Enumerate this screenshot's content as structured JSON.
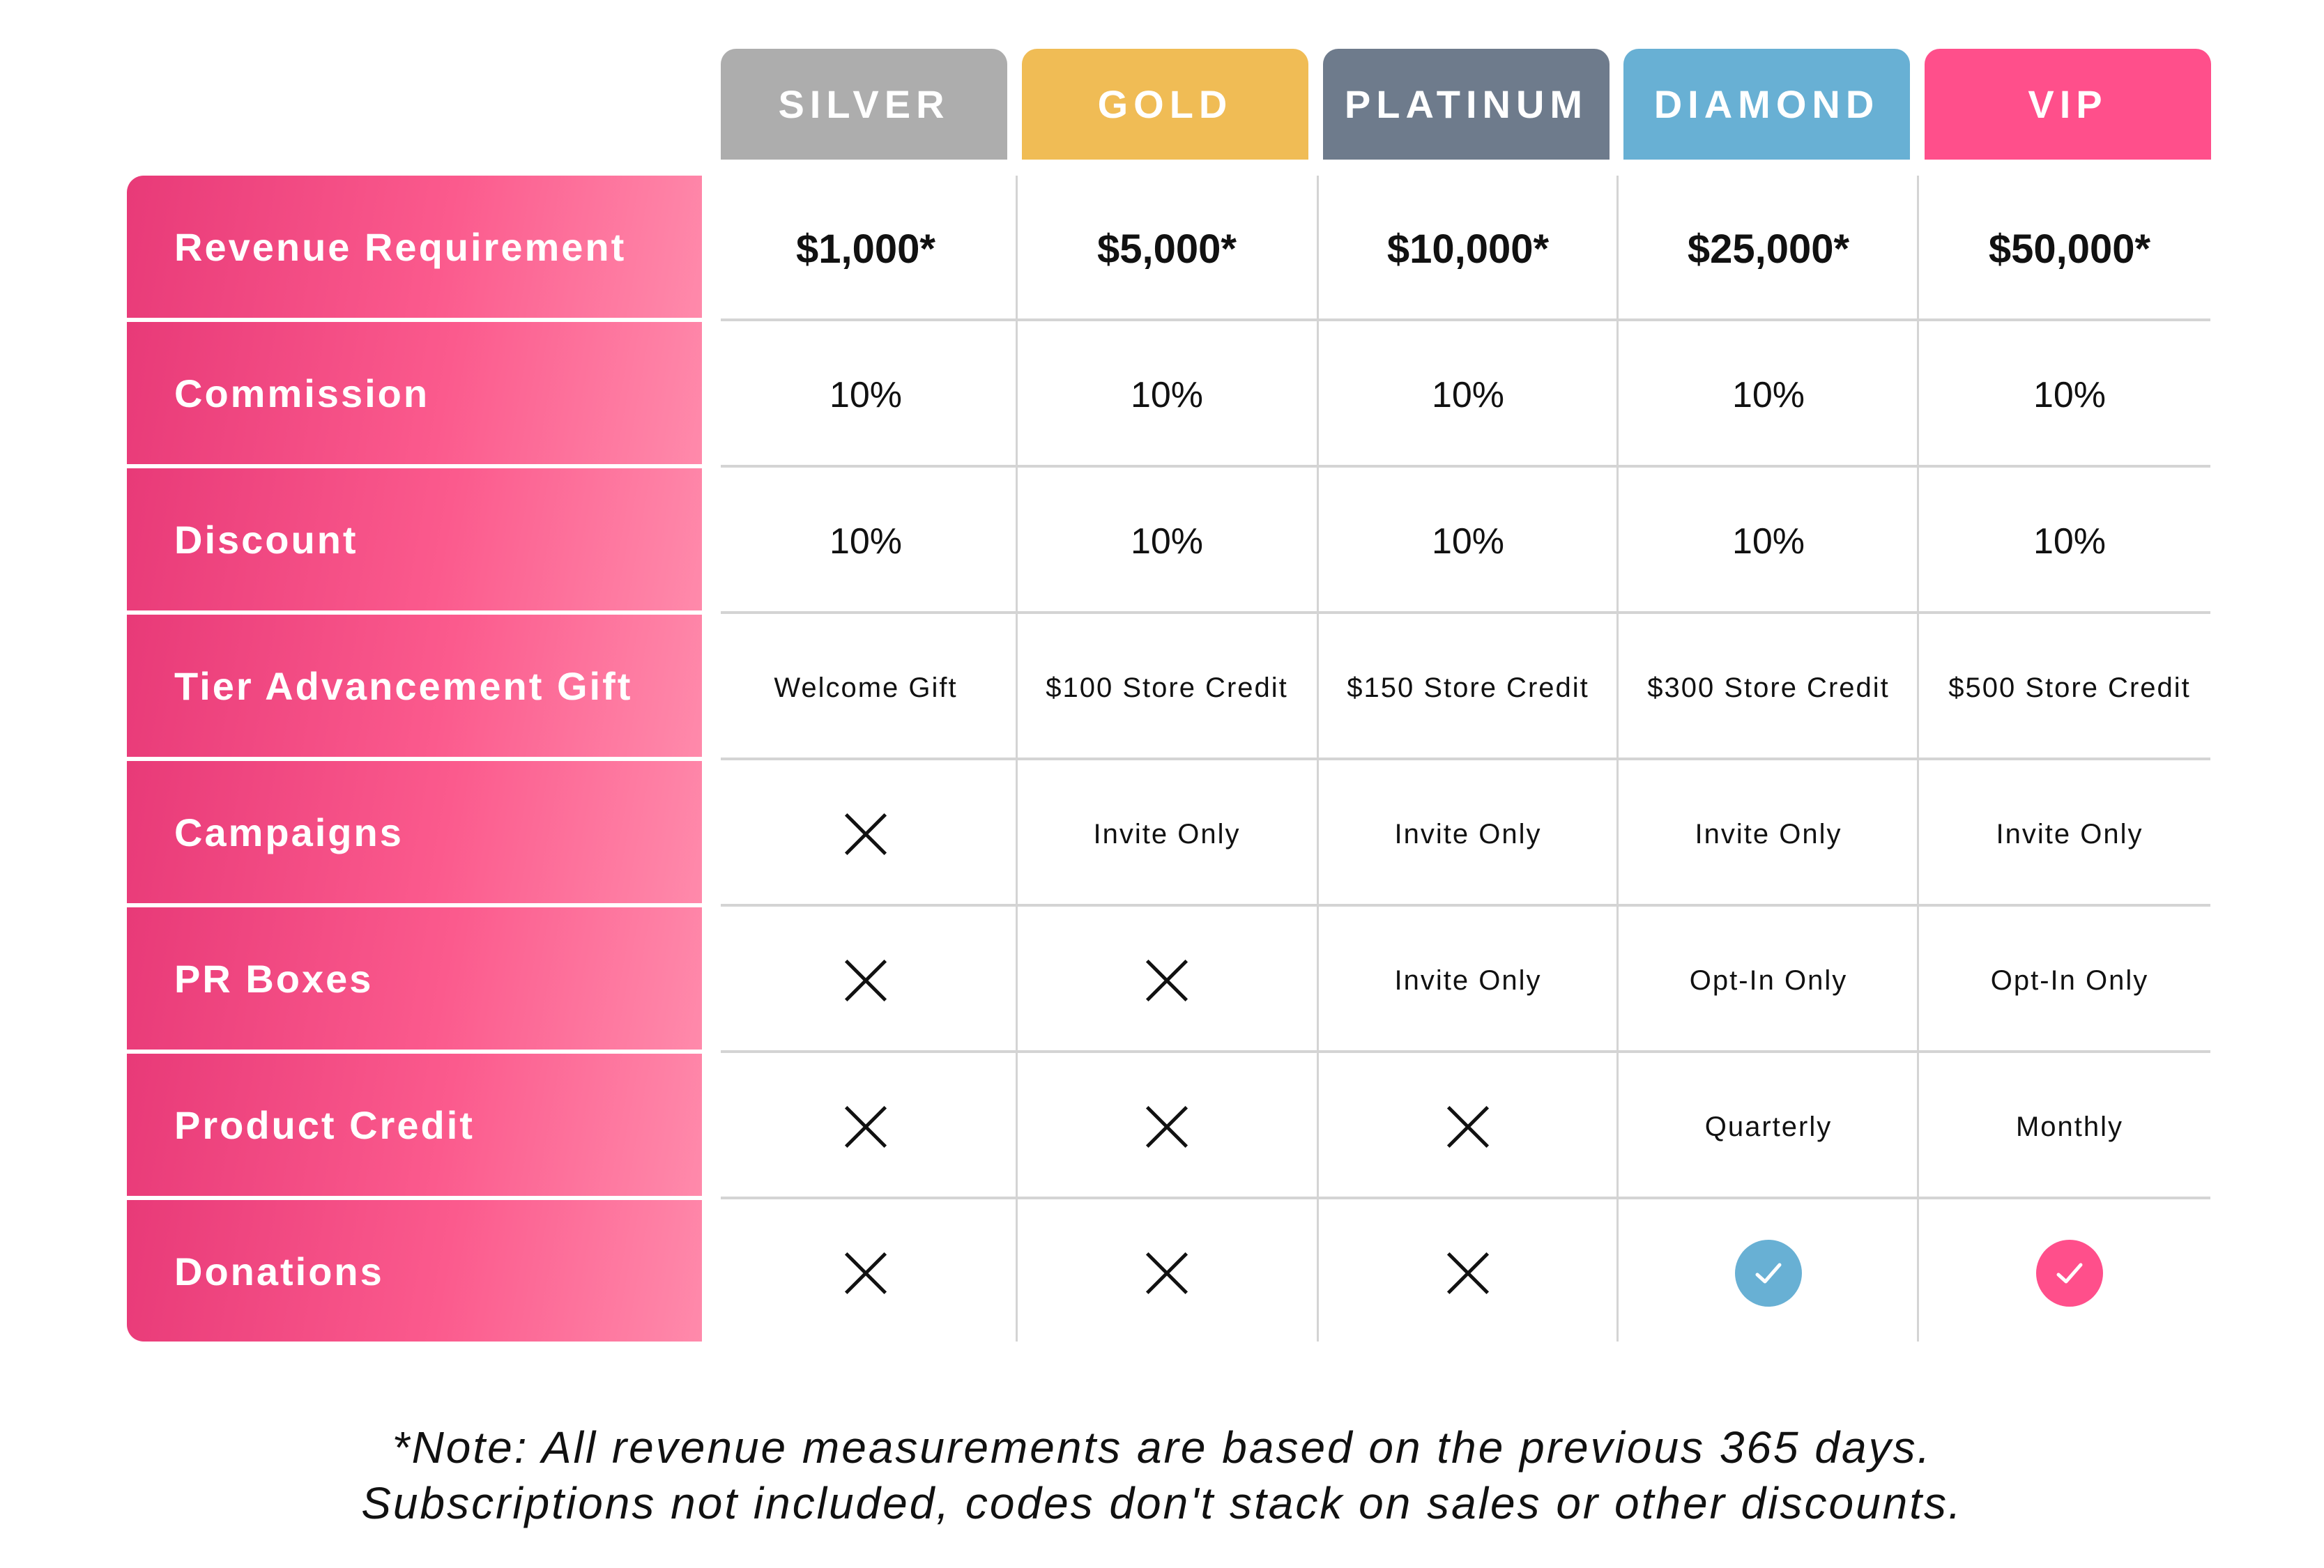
{
  "tiers": [
    {
      "name": "SILVER",
      "color": "#adadad"
    },
    {
      "name": "GOLD",
      "color": "#f0bc55"
    },
    {
      "name": "PLATINUM",
      "color": "#6e7b8c"
    },
    {
      "name": "DIAMOND",
      "color": "#68b0d4"
    },
    {
      "name": "VIP",
      "color": "#ff4f8b"
    }
  ],
  "rows": [
    {
      "label": "Revenue Requirement",
      "style": "big",
      "values": [
        "$1,000*",
        "$5,000*",
        "$10,000*",
        "$25,000*",
        "$50,000*"
      ]
    },
    {
      "label": "Commission",
      "style": "pct",
      "values": [
        "10%",
        "10%",
        "10%",
        "10%",
        "10%"
      ]
    },
    {
      "label": "Discount",
      "style": "pct",
      "values": [
        "10%",
        "10%",
        "10%",
        "10%",
        "10%"
      ]
    },
    {
      "label": "Tier Advancement Gift",
      "style": "small",
      "values": [
        "Welcome Gift",
        "$100 Store Credit",
        "$150 Store Credit",
        "$300 Store Credit",
        "$500 Store Credit"
      ]
    },
    {
      "label": "Campaigns",
      "style": "small",
      "values": [
        "x-icon",
        "Invite Only",
        "Invite Only",
        "Invite Only",
        "Invite Only"
      ]
    },
    {
      "label": "PR Boxes",
      "style": "small",
      "values": [
        "x-icon",
        "x-icon",
        "Invite Only",
        "Opt-In Only",
        "Opt-In Only"
      ]
    },
    {
      "label": "Product Credit",
      "style": "small",
      "values": [
        "x-icon",
        "x-icon",
        "x-icon",
        "Quarterly",
        "Monthly"
      ]
    },
    {
      "label": "Donations",
      "style": "small",
      "values": [
        "x-icon",
        "x-icon",
        "x-icon",
        "check-icon",
        "check-icon"
      ]
    }
  ],
  "note": {
    "line1": "*Note: All revenue measurements are based on the previous 365 days.",
    "line2": "Subscriptions not included, codes don't stack on sales or other discounts."
  }
}
